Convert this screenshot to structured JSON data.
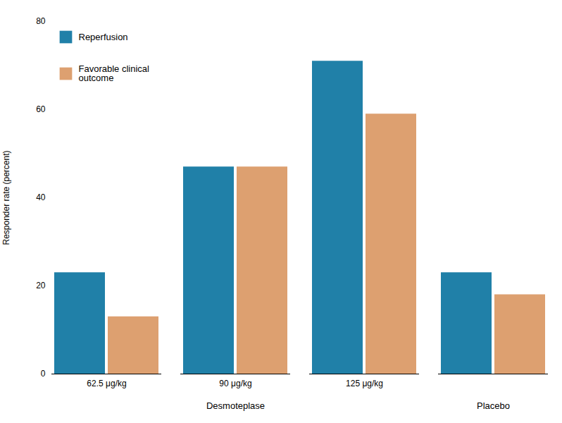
{
  "chart_data": {
    "type": "bar",
    "categories": [
      "62.5 μg/kg",
      "90 μg/kg",
      "125 μg/kg",
      null
    ],
    "series": [
      {
        "name": "Reperfusion",
        "color": "#2080a8",
        "values": [
          23,
          47,
          71,
          23
        ]
      },
      {
        "name": "Favorable clinical\noutcome",
        "color": "#dda070",
        "values": [
          13,
          47,
          59,
          18
        ]
      }
    ],
    "ylabel": "Responder rate (percent)",
    "ylim": [
      0,
      80
    ],
    "yticks": [
      0,
      20,
      40,
      60,
      80
    ],
    "legend": "upper left",
    "annotations": [
      "Desmoteplase",
      "Placebo"
    ]
  }
}
